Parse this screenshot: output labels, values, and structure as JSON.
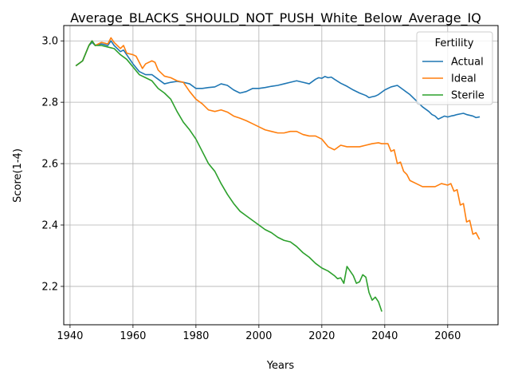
{
  "chart_data": {
    "type": "line",
    "title": "Average_BLACKS_SHOULD_NOT_PUSH_White_Below_Average_IQ",
    "xlabel": "Years",
    "ylabel": "Score(1-4)",
    "xlim": [
      1938,
      2076
    ],
    "ylim": [
      2.075,
      3.05
    ],
    "xticks": [
      1940,
      1960,
      1980,
      2000,
      2020,
      2040,
      2060
    ],
    "yticks": [
      2.2,
      2.4,
      2.6,
      2.8,
      3.0
    ],
    "ytick_labels": [
      "2.2",
      "2.4",
      "2.6",
      "2.8",
      "3.0"
    ],
    "grid": true,
    "legend": {
      "title": "Fertility",
      "placement": "top-right"
    },
    "series": [
      {
        "name": "Actual",
        "color": "#1f77b4",
        "x": [
          1942,
          1944,
          1946,
          1947,
          1948,
          1950,
          1952,
          1953,
          1954,
          1956,
          1957,
          1958,
          1960,
          1962,
          1964,
          1966,
          1968,
          1970,
          1972,
          1974,
          1976,
          1978,
          1980,
          1982,
          1984,
          1986,
          1988,
          1990,
          1992,
          1994,
          1996,
          1998,
          2000,
          2002,
          2004,
          2006,
          2008,
          2010,
          2012,
          2014,
          2016,
          2018,
          2019,
          2020,
          2021,
          2022,
          2023,
          2024,
          2026,
          2028,
          2030,
          2032,
          2034,
          2035,
          2036,
          2037,
          2038,
          2040,
          2042,
          2044,
          2046,
          2048,
          2050,
          2052,
          2054,
          2055,
          2056,
          2057,
          2058,
          2059,
          2060,
          2061,
          2062,
          2063,
          2064,
          2065,
          2066,
          2068,
          2069,
          2070
        ],
        "y": [
          2.92,
          2.935,
          2.985,
          2.995,
          2.985,
          2.99,
          2.985,
          3.0,
          2.985,
          2.965,
          2.97,
          2.955,
          2.925,
          2.9,
          2.89,
          2.89,
          2.875,
          2.86,
          2.865,
          2.868,
          2.865,
          2.86,
          2.845,
          2.845,
          2.848,
          2.85,
          2.86,
          2.855,
          2.84,
          2.83,
          2.835,
          2.845,
          2.845,
          2.848,
          2.852,
          2.855,
          2.86,
          2.865,
          2.87,
          2.865,
          2.86,
          2.875,
          2.88,
          2.878,
          2.884,
          2.88,
          2.882,
          2.875,
          2.862,
          2.852,
          2.84,
          2.83,
          2.822,
          2.815,
          2.818,
          2.82,
          2.825,
          2.84,
          2.85,
          2.855,
          2.84,
          2.825,
          2.805,
          2.785,
          2.77,
          2.76,
          2.755,
          2.745,
          2.75,
          2.755,
          2.752,
          2.755,
          2.757,
          2.76,
          2.762,
          2.764,
          2.76,
          2.755,
          2.75,
          2.752
        ]
      },
      {
        "name": "Ideal",
        "color": "#ff7f0e",
        "x": [
          1942,
          1944,
          1946,
          1947,
          1948,
          1950,
          1952,
          1953,
          1954,
          1956,
          1957,
          1958,
          1960,
          1961,
          1962,
          1963,
          1964,
          1966,
          1967,
          1968,
          1970,
          1972,
          1974,
          1976,
          1978,
          1980,
          1982,
          1984,
          1986,
          1988,
          1990,
          1992,
          1994,
          1996,
          1998,
          2000,
          2002,
          2004,
          2006,
          2008,
          2010,
          2012,
          2014,
          2016,
          2018,
          2020,
          2022,
          2024,
          2026,
          2028,
          2030,
          2032,
          2034,
          2036,
          2038,
          2039,
          2040,
          2041,
          2042,
          2043,
          2044,
          2045,
          2046,
          2047,
          2048,
          2050,
          2052,
          2054,
          2056,
          2058,
          2060,
          2061,
          2062,
          2063,
          2064,
          2065,
          2066,
          2067,
          2068,
          2069,
          2070
        ],
        "y": [
          2.92,
          2.935,
          2.985,
          3.0,
          2.985,
          2.995,
          2.99,
          3.01,
          2.995,
          2.975,
          2.985,
          2.96,
          2.955,
          2.95,
          2.93,
          2.91,
          2.925,
          2.935,
          2.93,
          2.905,
          2.885,
          2.88,
          2.87,
          2.865,
          2.835,
          2.81,
          2.795,
          2.775,
          2.77,
          2.775,
          2.768,
          2.755,
          2.748,
          2.74,
          2.73,
          2.72,
          2.71,
          2.705,
          2.7,
          2.7,
          2.705,
          2.705,
          2.695,
          2.69,
          2.69,
          2.68,
          2.655,
          2.645,
          2.66,
          2.655,
          2.655,
          2.655,
          2.66,
          2.665,
          2.668,
          2.665,
          2.665,
          2.665,
          2.64,
          2.645,
          2.6,
          2.605,
          2.575,
          2.565,
          2.545,
          2.535,
          2.525,
          2.525,
          2.525,
          2.535,
          2.53,
          2.535,
          2.51,
          2.515,
          2.465,
          2.47,
          2.41,
          2.415,
          2.37,
          2.375,
          2.355
        ]
      },
      {
        "name": "Sterile",
        "color": "#2ca02c",
        "x": [
          1942,
          1944,
          1946,
          1947,
          1948,
          1950,
          1952,
          1954,
          1956,
          1958,
          1960,
          1962,
          1964,
          1966,
          1968,
          1970,
          1972,
          1974,
          1976,
          1978,
          1980,
          1982,
          1984,
          1986,
          1988,
          1990,
          1992,
          1994,
          1996,
          1998,
          2000,
          2002,
          2004,
          2006,
          2008,
          2010,
          2012,
          2014,
          2016,
          2018,
          2020,
          2022,
          2024,
          2025,
          2026,
          2027,
          2028,
          2029,
          2030,
          2031,
          2032,
          2033,
          2034,
          2035,
          2036,
          2037,
          2038,
          2039
        ],
        "y": [
          2.92,
          2.935,
          2.985,
          3.0,
          2.985,
          2.985,
          2.98,
          2.975,
          2.955,
          2.94,
          2.915,
          2.89,
          2.88,
          2.87,
          2.845,
          2.83,
          2.81,
          2.77,
          2.735,
          2.71,
          2.68,
          2.64,
          2.6,
          2.575,
          2.535,
          2.5,
          2.47,
          2.445,
          2.43,
          2.415,
          2.4,
          2.385,
          2.375,
          2.36,
          2.35,
          2.345,
          2.33,
          2.31,
          2.295,
          2.275,
          2.26,
          2.25,
          2.235,
          2.225,
          2.228,
          2.21,
          2.265,
          2.25,
          2.235,
          2.21,
          2.215,
          2.238,
          2.23,
          2.18,
          2.155,
          2.165,
          2.15,
          2.12
        ]
      }
    ]
  }
}
